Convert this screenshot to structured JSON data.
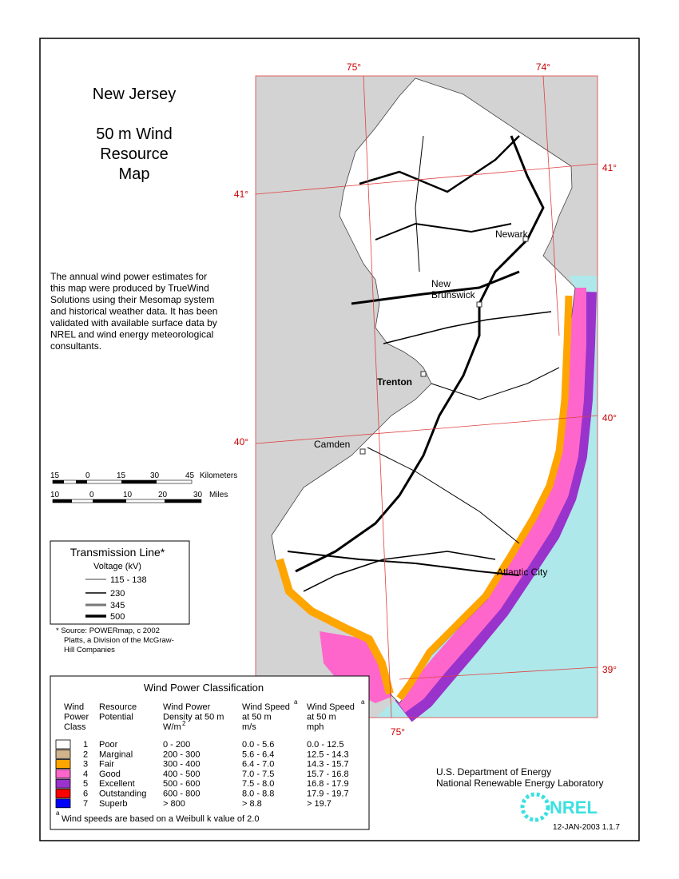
{
  "title": [
    "New Jersey",
    "50 m Wind",
    "Resource",
    "Map"
  ],
  "description": [
    "The annual wind power estimates for",
    "this map were produced by TrueWind",
    "Solutions using their Mesomap system",
    "and historical weather data.  It has been",
    "validated with available surface data by",
    "NREL and wind energy meteorological",
    "consultants."
  ],
  "graticule": [
    "75°",
    "74°",
    "41°",
    "41°",
    "40°",
    "40°",
    "39°",
    "75°"
  ],
  "cities": [
    "Newark",
    "New",
    "Brunswick",
    "Trenton",
    "Camden",
    "Atlantic City"
  ],
  "scale": {
    "km": [
      "15",
      "0",
      "15",
      "30",
      "45"
    ],
    "km_unit": "Kilometers",
    "miles": [
      "10",
      "0",
      "10",
      "20",
      "30"
    ],
    "miles_unit": "Miles"
  },
  "transmission": {
    "title": "Transmission Line*",
    "subtitle": "Voltage (kV)",
    "classes": [
      "115 - 138",
      "230",
      "345",
      "500"
    ],
    "source": [
      "* Source:  POWERmap, c 2002",
      "Platts, a Division of the McGraw-",
      "Hill Companies"
    ]
  },
  "wind_table": {
    "title": "Wind Power Classification",
    "headers": [
      [
        "Wind",
        "Power",
        "Class"
      ],
      [
        "Resource",
        "Potential"
      ],
      [
        "Wind Power",
        "Density at 50 m",
        "W/m"
      ],
      [
        "Wind Speed",
        "at 50 m",
        "m/s"
      ],
      [
        "Wind Speed",
        "at 50 m",
        "mph"
      ]
    ],
    "header_marks": [
      "2",
      "a",
      "a"
    ],
    "colors": [
      "#ffffff",
      "#d2b48c",
      "#ffa500",
      "#ff66cc",
      "#9933cc",
      "#ff0000",
      "#0000ff"
    ],
    "rows": [
      [
        "1",
        "Poor",
        "0 -  200",
        "0.0 -  5.6",
        "0.0 - 12.5"
      ],
      [
        "2",
        "Marginal",
        "200 -  300",
        "5.6 -  6.4",
        "12.5 - 14.3"
      ],
      [
        "3",
        "Fair",
        "300 -  400",
        "6.4 -  7.0",
        "14.3 - 15.7"
      ],
      [
        "4",
        "Good",
        "400 -  500",
        "7.0 -  7.5",
        "15.7 - 16.8"
      ],
      [
        "5",
        "Excellent",
        "500 -  600",
        "7.5 -  8.0",
        "16.8 - 17.9"
      ],
      [
        "6",
        "Outstanding",
        "600 -  800",
        "8.0 -  8.8",
        "17.9 - 19.7"
      ],
      [
        "7",
        "Superb",
        "> 800",
        "> 8.8",
        "> 19.7"
      ]
    ],
    "footnote": [
      "a",
      "Wind speeds are based on a Weibull k value of 2.0"
    ]
  },
  "agency": [
    "U.S. Department of Energy",
    "National Renewable Energy Laboratory"
  ],
  "logo": "NREL",
  "version": "12-JAN-2003 1.1.7"
}
